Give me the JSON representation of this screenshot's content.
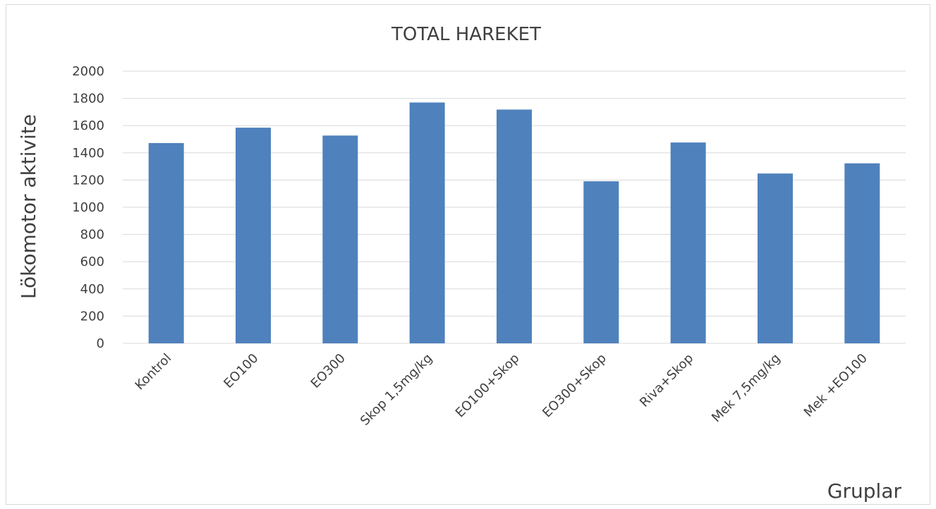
{
  "chart_data": {
    "type": "bar",
    "title": "TOTAL HAREKET",
    "xlabel": "Gruplar",
    "ylabel": "Lökomotor aktivite",
    "categories": [
      "Kontrol",
      "EO100",
      "EO300",
      "Skop 1,5mg/kg",
      "EO100+Skop",
      "EO300+Skop",
      "Riva+Skop",
      "Mek 7,5mg/kg",
      "Mek +EO100"
    ],
    "values": [
      1472,
      1585,
      1527,
      1770,
      1718,
      1191,
      1476,
      1248,
      1323
    ],
    "ylim": [
      0,
      2000
    ],
    "yticks": [
      "0",
      "200",
      "400",
      "600",
      "800",
      "1000",
      "1200",
      "1400",
      "1600",
      "1800",
      "2000"
    ],
    "grid": true,
    "legend": "none",
    "bar_color": "#4f81bd",
    "grid_color": "#d9d9d9"
  }
}
